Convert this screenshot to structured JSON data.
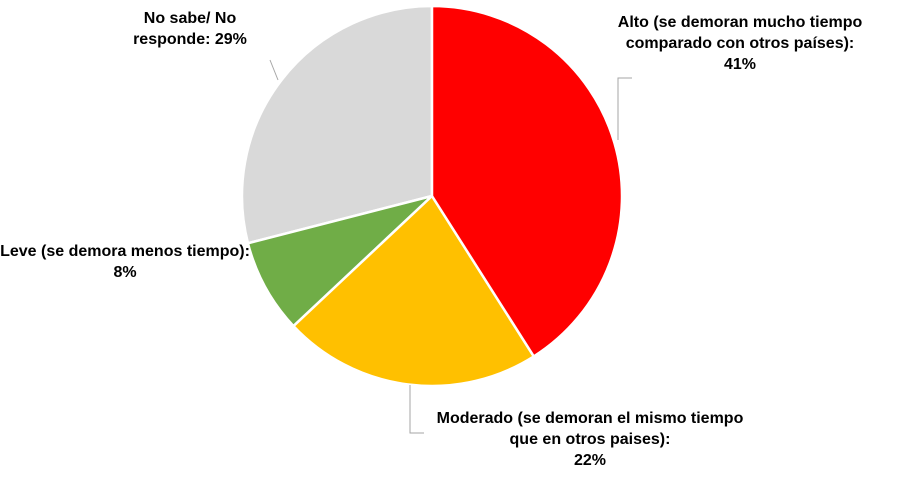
{
  "chart_data": {
    "type": "pie",
    "categories": [
      "Alto (se demoran mucho tiempo comparado con otros países):",
      "Moderado (se demoran el mismo tiempo que en otros paises):",
      "Leve (se demora menos tiempo):",
      "No sabe/ No responde:"
    ],
    "values": [
      41,
      22,
      8,
      29
    ],
    "value_labels": [
      "41%",
      "22%",
      "8%",
      "29%"
    ],
    "colors": [
      "#ff0000",
      "#ffc000",
      "#70ad47",
      "#d9d9d9"
    ]
  }
}
